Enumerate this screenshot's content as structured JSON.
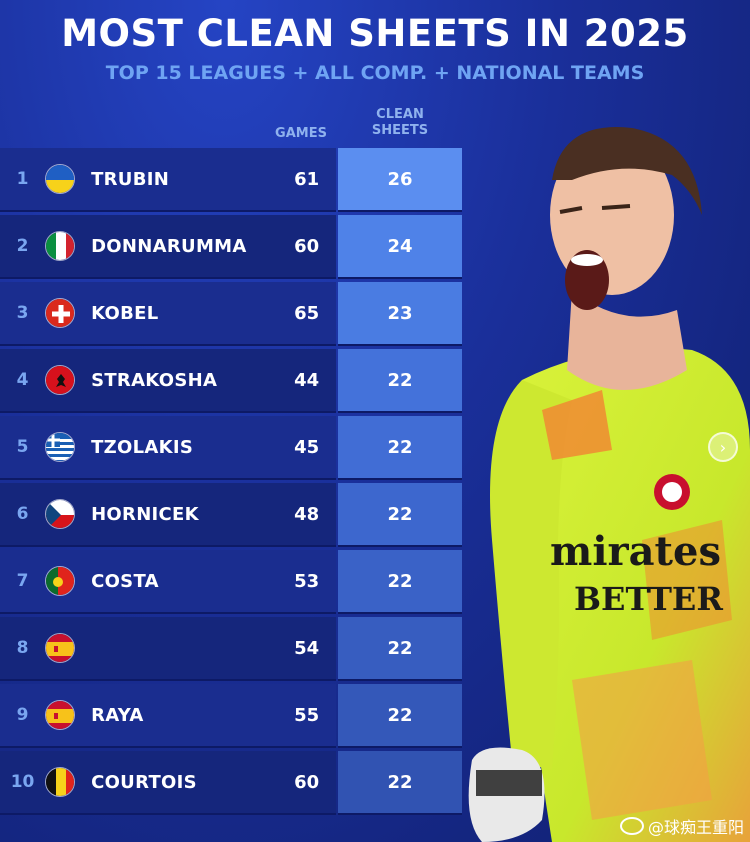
{
  "header": {
    "title": "MOST CLEAN SHEETS IN 2025",
    "subtitle": "TOP 15 LEAGUES + ALL COMP. + NATIONAL TEAMS"
  },
  "columns": {
    "games": "GAMES",
    "clean_sheets_line1": "CLEAN",
    "clean_sheets_line2": "SHEETS"
  },
  "rows": [
    {
      "rank": "1",
      "country": "ukraine",
      "name": "TRUBIN",
      "games": "61",
      "clean_sheets": "26",
      "cs_color": "#5b8ef0"
    },
    {
      "rank": "2",
      "country": "italy",
      "name": "DONNARUMMA",
      "games": "60",
      "clean_sheets": "24",
      "cs_color": "#4f82e8"
    },
    {
      "rank": "3",
      "country": "switzerland",
      "name": "KOBEL",
      "games": "65",
      "clean_sheets": "23",
      "cs_color": "#4a7ce2"
    },
    {
      "rank": "4",
      "country": "albania",
      "name": "STRAKOSHA",
      "games": "44",
      "clean_sheets": "22",
      "cs_color": "#4472da"
    },
    {
      "rank": "5",
      "country": "greece",
      "name": "TZOLAKIS",
      "games": "45",
      "clean_sheets": "22",
      "cs_color": "#416dd5"
    },
    {
      "rank": "6",
      "country": "czechia",
      "name": "HORNICEK",
      "games": "48",
      "clean_sheets": "22",
      "cs_color": "#3d67ce"
    },
    {
      "rank": "7",
      "country": "portugal",
      "name": "COSTA",
      "games": "53",
      "clean_sheets": "22",
      "cs_color": "#3a62c7"
    },
    {
      "rank": "8",
      "country": "spain",
      "name": "",
      "games": "54",
      "clean_sheets": "22",
      "cs_color": "#375dc0"
    },
    {
      "rank": "9",
      "country": "spain",
      "name": "RAYA",
      "games": "55",
      "clean_sheets": "22",
      "cs_color": "#3458b9"
    },
    {
      "rank": "10",
      "country": "belgium",
      "name": "COURTOIS",
      "games": "60",
      "clean_sheets": "22",
      "cs_color": "#3153b2"
    }
  ],
  "watermark": "@球痴王重阳",
  "icons": {
    "nav": "chevron-right-icon",
    "watermark_logo": "weibo-icon"
  }
}
